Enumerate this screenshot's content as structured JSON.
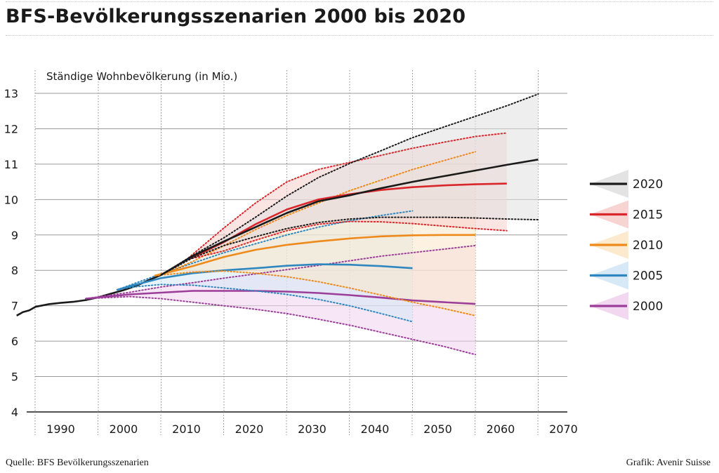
{
  "header": {
    "title": "BFS-Bevölkerungsszenarien 2000 bis 2020"
  },
  "footer": {
    "source": "Quelle: BFS Bevölkerungsszenarien",
    "credit": "Grafik: Avenir Suisse"
  },
  "chart_data": {
    "type": "line",
    "title": "BFS-Bevölkerungsszenarien 2000 bis 2020",
    "ylabel": "Ständige Wohnbevölkerung (in Mio.)",
    "xlabel": "",
    "xlim": [
      1987,
      2071
    ],
    "ylim": [
      4,
      13
    ],
    "x_ticks": [
      1990,
      2000,
      2010,
      2020,
      2030,
      2040,
      2050,
      2060,
      2070
    ],
    "y_ticks": [
      4,
      5,
      6,
      7,
      8,
      9,
      10,
      11,
      12,
      13
    ],
    "grid": true,
    "legend_position": "right",
    "history": {
      "color": "#1a1a1a",
      "x": [
        1987,
        1988,
        1989,
        1990,
        1992,
        1994,
        1996,
        1998,
        2000,
        2002,
        2004,
        2006,
        2008,
        2010
      ],
      "y": [
        6.72,
        6.82,
        6.87,
        6.97,
        7.04,
        7.08,
        7.11,
        7.16,
        7.24,
        7.34,
        7.44,
        7.56,
        7.72,
        7.87
      ]
    },
    "series": [
      {
        "name": "2000",
        "color": "#9b3d99",
        "fill": "#f0d4ee",
        "x_end": 2060,
        "mid": {
          "x": [
            1998,
            2005,
            2010,
            2015,
            2020,
            2025,
            2030,
            2035,
            2040,
            2045,
            2050,
            2055,
            2060
          ],
          "y": [
            7.2,
            7.32,
            7.37,
            7.42,
            7.42,
            7.42,
            7.4,
            7.36,
            7.3,
            7.23,
            7.15,
            7.1,
            7.05
          ]
        },
        "high": {
          "x": [
            1998,
            2005,
            2010,
            2015,
            2020,
            2025,
            2030,
            2035,
            2040,
            2045,
            2050,
            2055,
            2060
          ],
          "y": [
            7.2,
            7.38,
            7.53,
            7.65,
            7.78,
            7.9,
            8.02,
            8.14,
            8.27,
            8.4,
            8.5,
            8.6,
            8.7
          ]
        },
        "low": {
          "x": [
            1998,
            2005,
            2010,
            2015,
            2020,
            2025,
            2030,
            2035,
            2040,
            2045,
            2050,
            2055,
            2060
          ],
          "y": [
            7.2,
            7.26,
            7.2,
            7.1,
            7.0,
            6.9,
            6.78,
            6.62,
            6.45,
            6.25,
            6.05,
            5.85,
            5.62
          ]
        }
      },
      {
        "name": "2005",
        "color": "#2f87c0",
        "fill": "#d3e7f5",
        "x_end": 2050,
        "mid": {
          "x": [
            2003,
            2005,
            2010,
            2015,
            2020,
            2025,
            2030,
            2035,
            2040,
            2045,
            2050
          ],
          "y": [
            7.45,
            7.55,
            7.78,
            7.92,
            8.0,
            8.06,
            8.13,
            8.17,
            8.16,
            8.12,
            8.06
          ]
        },
        "high": {
          "x": [
            2003,
            2005,
            2010,
            2015,
            2020,
            2025,
            2030,
            2035,
            2040,
            2045,
            2050
          ],
          "y": [
            7.45,
            7.58,
            7.9,
            8.2,
            8.5,
            8.75,
            9.0,
            9.22,
            9.4,
            9.55,
            9.68
          ]
        },
        "low": {
          "x": [
            2003,
            2005,
            2010,
            2015,
            2020,
            2025,
            2030,
            2035,
            2040,
            2045,
            2050
          ],
          "y": [
            7.45,
            7.52,
            7.6,
            7.58,
            7.5,
            7.42,
            7.32,
            7.18,
            7.0,
            6.78,
            6.55
          ]
        }
      },
      {
        "name": "2010",
        "color": "#ee8a1c",
        "fill": "#fbe8c8",
        "x_end": 2060,
        "mid": {
          "x": [
            2009,
            2012,
            2015,
            2020,
            2025,
            2030,
            2035,
            2040,
            2045,
            2050,
            2055,
            2060
          ],
          "y": [
            7.85,
            7.98,
            8.12,
            8.38,
            8.58,
            8.72,
            8.82,
            8.9,
            8.96,
            8.99,
            9.0,
            9.0
          ]
        },
        "high": {
          "x": [
            2009,
            2012,
            2015,
            2020,
            2025,
            2030,
            2035,
            2040,
            2045,
            2050,
            2055,
            2060
          ],
          "y": [
            7.85,
            8.02,
            8.25,
            8.7,
            9.15,
            9.55,
            9.9,
            10.25,
            10.55,
            10.85,
            11.1,
            11.35
          ]
        },
        "low": {
          "x": [
            2009,
            2012,
            2015,
            2020,
            2025,
            2030,
            2035,
            2040,
            2045,
            2050,
            2055,
            2060
          ],
          "y": [
            7.85,
            7.9,
            7.95,
            7.98,
            7.92,
            7.82,
            7.68,
            7.5,
            7.3,
            7.1,
            6.92,
            6.72
          ]
        }
      },
      {
        "name": "2015",
        "color": "#d9262b",
        "fill": "#f6cfcc",
        "x_end": 2065,
        "mid": {
          "x": [
            2014,
            2016,
            2020,
            2025,
            2030,
            2035,
            2040,
            2045,
            2050,
            2055,
            2060,
            2065
          ],
          "y": [
            8.3,
            8.45,
            8.8,
            9.3,
            9.72,
            10.0,
            10.15,
            10.27,
            10.35,
            10.4,
            10.43,
            10.45
          ]
        },
        "high": {
          "x": [
            2014,
            2016,
            2020,
            2025,
            2030,
            2035,
            2040,
            2045,
            2050,
            2055,
            2060,
            2065
          ],
          "y": [
            8.3,
            8.6,
            9.2,
            9.9,
            10.5,
            10.85,
            11.05,
            11.25,
            11.45,
            11.62,
            11.78,
            11.88
          ]
        },
        "low": {
          "x": [
            2014,
            2016,
            2020,
            2025,
            2030,
            2035,
            2040,
            2045,
            2050,
            2055,
            2060,
            2065
          ],
          "y": [
            8.3,
            8.38,
            8.55,
            8.85,
            9.12,
            9.3,
            9.38,
            9.37,
            9.32,
            9.25,
            9.18,
            9.12
          ]
        }
      },
      {
        "name": "2020",
        "color": "#1a1a1a",
        "fill": "#e0e0e0",
        "x_end": 2070,
        "mid": {
          "x": [
            2010,
            2015,
            2020,
            2025,
            2030,
            2035,
            2040,
            2045,
            2050,
            2055,
            2060,
            2065,
            2070
          ],
          "y": [
            7.87,
            8.4,
            8.82,
            9.22,
            9.62,
            9.95,
            10.12,
            10.32,
            10.5,
            10.66,
            10.82,
            10.98,
            11.13
          ]
        },
        "high": {
          "x": [
            2010,
            2015,
            2020,
            2025,
            2030,
            2035,
            2040,
            2045,
            2050,
            2055,
            2060,
            2065,
            2070
          ],
          "y": [
            7.87,
            8.42,
            8.92,
            9.5,
            10.1,
            10.62,
            11.02,
            11.38,
            11.75,
            12.05,
            12.35,
            12.65,
            12.98
          ]
        },
        "low": {
          "x": [
            2010,
            2015,
            2020,
            2025,
            2030,
            2035,
            2040,
            2045,
            2050,
            2055,
            2060,
            2065,
            2070
          ],
          "y": [
            7.87,
            8.35,
            8.7,
            8.95,
            9.18,
            9.35,
            9.45,
            9.5,
            9.5,
            9.5,
            9.48,
            9.45,
            9.43
          ]
        }
      }
    ],
    "legend": [
      "2020",
      "2015",
      "2010",
      "2005",
      "2000"
    ]
  }
}
